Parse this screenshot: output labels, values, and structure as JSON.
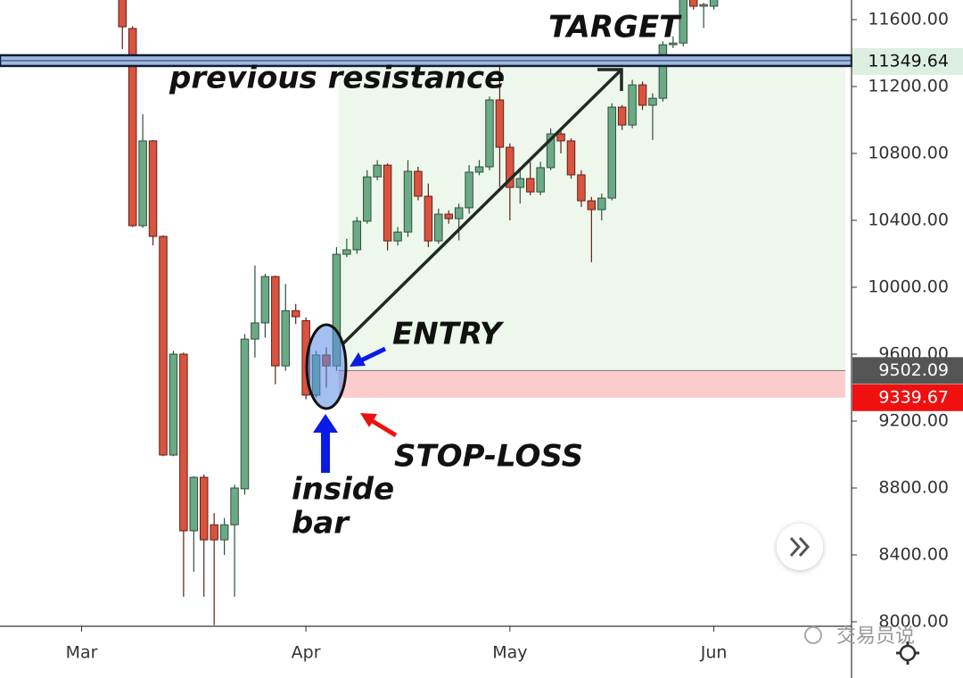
{
  "chart_data": {
    "type": "candlestick",
    "open": [
      11744,
      11547,
      10368,
      10875,
      10304,
      8997,
      9600,
      8544,
      8864,
      8580,
      8490,
      8580,
      8795,
      9690,
      9787,
      10064,
      9530,
      9860,
      9800,
      9355,
      9595,
      9530,
      10197,
      10224,
      10395,
      10660,
      10730,
      10277,
      10330,
      10693,
      10544,
      10277,
      10437,
      10410,
      10475,
      10688,
      10720,
      11120,
      10837,
      10597,
      10650,
      10570,
      10715,
      10917,
      10875,
      10672,
      10517,
      10464,
      10533,
      11077,
      10970,
      11210,
      11088,
      11130,
      11450,
      11460,
      11720,
      11680,
      11680
    ],
    "high": [
      11770,
      11560,
      11035,
      10880,
      10310,
      9620,
      9610,
      8870,
      8880,
      8650,
      8620,
      8820,
      9720,
      10130,
      10080,
      10070,
      10020,
      9900,
      9820,
      9620,
      9640,
      10240,
      10290,
      10420,
      10700,
      10760,
      10740,
      10360,
      10760,
      10720,
      10620,
      10470,
      10460,
      10500,
      10730,
      10760,
      11140,
      11380,
      10860,
      10700,
      10750,
      10750,
      10950,
      10940,
      10890,
      10700,
      10540,
      10560,
      11100,
      11090,
      11240,
      11230,
      11160,
      11470,
      11500,
      11750,
      11730,
      11700,
      11740
    ],
    "low": [
      11424,
      10360,
      10355,
      10250,
      8990,
      8990,
      8150,
      8300,
      8150,
      7980,
      8400,
      8150,
      8760,
      9580,
      9700,
      9420,
      9500,
      9780,
      9330,
      9340,
      9400,
      9500,
      10180,
      10200,
      10380,
      10640,
      10220,
      10250,
      10300,
      10520,
      10240,
      10260,
      10380,
      10280,
      10440,
      10670,
      10700,
      10600,
      10400,
      10500,
      10550,
      10550,
      10700,
      10800,
      10650,
      10480,
      10150,
      10400,
      10520,
      10940,
      10950,
      11060,
      10880,
      11110,
      11430,
      11440,
      11660,
      11550,
      11660
    ],
    "close": [
      11557,
      10368,
      10875,
      10304,
      8997,
      9600,
      8544,
      8864,
      8490,
      8490,
      8580,
      8800,
      9690,
      9787,
      10064,
      9530,
      9860,
      9824,
      9355,
      9595,
      9530,
      10197,
      10224,
      10395,
      10660,
      10730,
      10277,
      10330,
      10693,
      10544,
      10277,
      10437,
      10410,
      10475,
      10688,
      10720,
      11120,
      10837,
      10597,
      10650,
      10570,
      10715,
      10917,
      10875,
      10672,
      10517,
      10464,
      10533,
      11077,
      10970,
      11210,
      11088,
      11130,
      11450,
      11460,
      11720,
      11680,
      11690,
      11720
    ],
    "up_color": "#6aaa85",
    "down_color": "#d9533f",
    "xlim": [
      -12,
      71.5
    ],
    "xticks": [
      {
        "value": -4,
        "label": "Mar"
      },
      {
        "value": 18,
        "label": "Apr"
      },
      {
        "value": 38,
        "label": "May"
      },
      {
        "value": 58,
        "label": "Jun"
      }
    ],
    "ylim": [
      7973.33,
      11717.33
    ],
    "yticks": [
      {
        "value": 8000,
        "label": "8000.00"
      },
      {
        "value": 8400,
        "label": "8400.00"
      },
      {
        "value": 8800,
        "label": "8800.00"
      },
      {
        "value": 9200,
        "label": "9200.00"
      },
      {
        "value": 9600,
        "label": "9600.00"
      },
      {
        "value": 10000,
        "label": "10000.00"
      },
      {
        "value": 10400,
        "label": "10400.00"
      },
      {
        "value": 10800,
        "label": "10800.00"
      },
      {
        "value": 11200,
        "label": "11200.00"
      },
      {
        "value": 11600,
        "label": "11600.00"
      }
    ],
    "target": 11349.64,
    "entry": 9502.09,
    "stop_loss": 9339.67,
    "annotations": {
      "target": "TARGET",
      "resistance": "previous resistance",
      "entry": "ENTRY",
      "stop_loss": "STOP-LOSS",
      "inside": "inside",
      "bar": "bar"
    },
    "watermark": "交易员说"
  }
}
